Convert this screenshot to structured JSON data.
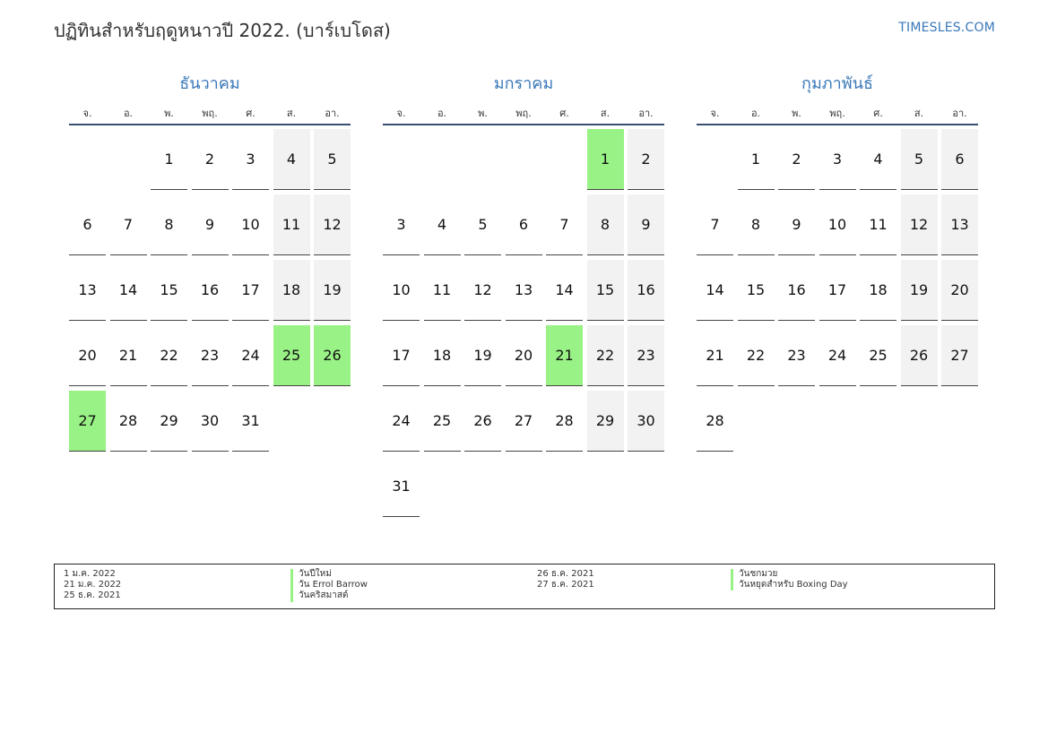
{
  "header": {
    "title": "ปฏิทินสำหรับฤดูหนาวปี 2022. (บาร์เบโดส)",
    "brand": "TIMESLES.COM"
  },
  "colors": {
    "accent": "#3a78b8",
    "holiday": "#99f285",
    "weekend": "#f2f2f2"
  },
  "weekdays": [
    "จ.",
    "อ.",
    "พ.",
    "พฤ.",
    "ศ.",
    "ส.",
    "อา."
  ],
  "months": [
    {
      "name": "ธันวาคม",
      "days": [
        [
          "",
          "",
          "1",
          "2",
          "3",
          "4",
          "5"
        ],
        [
          "6",
          "7",
          "8",
          "9",
          "10",
          "11",
          "12"
        ],
        [
          "13",
          "14",
          "15",
          "16",
          "17",
          "18",
          "19"
        ],
        [
          "20",
          "21",
          "22",
          "23",
          "24",
          "25",
          "26"
        ],
        [
          "27",
          "28",
          "29",
          "30",
          "31",
          "",
          ""
        ]
      ],
      "holidays": [
        "25",
        "26",
        "27"
      ]
    },
    {
      "name": "มกราคม",
      "days": [
        [
          "",
          "",
          "",
          "",
          "",
          "1",
          "2"
        ],
        [
          "3",
          "4",
          "5",
          "6",
          "7",
          "8",
          "9"
        ],
        [
          "10",
          "11",
          "12",
          "13",
          "14",
          "15",
          "16"
        ],
        [
          "17",
          "18",
          "19",
          "20",
          "21",
          "22",
          "23"
        ],
        [
          "24",
          "25",
          "26",
          "27",
          "28",
          "29",
          "30"
        ],
        [
          "31",
          "",
          "",
          "",
          "",
          "",
          ""
        ]
      ],
      "holidays": [
        "1",
        "21"
      ]
    },
    {
      "name": "กุมภาพันธ์",
      "days": [
        [
          "",
          "1",
          "2",
          "3",
          "4",
          "5",
          "6"
        ],
        [
          "7",
          "8",
          "9",
          "10",
          "11",
          "12",
          "13"
        ],
        [
          "14",
          "15",
          "16",
          "17",
          "18",
          "19",
          "20"
        ],
        [
          "21",
          "22",
          "23",
          "24",
          "25",
          "26",
          "27"
        ],
        [
          "28",
          "",
          "",
          "",
          "",
          "",
          ""
        ]
      ],
      "holidays": []
    }
  ],
  "legend": {
    "columns": [
      [
        "1 ม.ค. 2022",
        "21 ม.ค. 2022",
        "25 ธ.ค. 2021"
      ],
      [
        "วันปีใหม่",
        "วัน Errol Barrow",
        "วันคริสมาสต์"
      ],
      [
        "26 ธ.ค. 2021",
        "27 ธ.ค. 2021"
      ],
      [
        "วันชกมวย",
        "วันหยุดสำหรับ Boxing Day"
      ]
    ]
  }
}
